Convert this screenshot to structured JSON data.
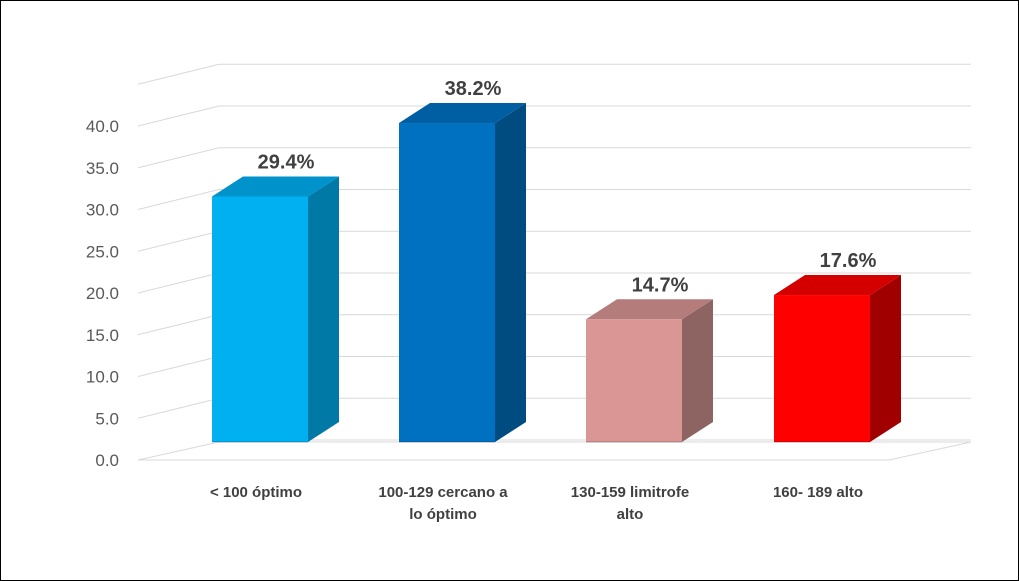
{
  "chart_data": {
    "type": "bar",
    "categories": [
      [
        "< 100 óptimo"
      ],
      [
        "100-129 cercano a",
        "lo óptimo"
      ],
      [
        "130-159 limitrofe",
        "alto"
      ],
      [
        "160- 189 alto"
      ]
    ],
    "values": [
      29.4,
      38.2,
      14.7,
      17.6
    ],
    "data_labels": [
      "29.4%",
      "38.2%",
      "14.7%",
      "17.6%"
    ],
    "y_ticks": [
      "0.0",
      "5.0",
      "10.0",
      "15.0",
      "20.0",
      "25.0",
      "30.0",
      "35.0",
      "40.0"
    ],
    "ylim": [
      0,
      40
    ],
    "style": "3d-column",
    "grid": true,
    "legend": "none",
    "colors": [
      {
        "front": "#00B0F0",
        "side": "#0079A6",
        "top": "#0092CA"
      },
      {
        "front": "#0070C0",
        "side": "#004B80",
        "top": "#005EA3"
      },
      {
        "front": "#D99694",
        "side": "#8E6463",
        "top": "#B47C7B"
      },
      {
        "front": "#FF0000",
        "side": "#A00000",
        "top": "#D40000"
      }
    ],
    "grid_color": "#D9D9D9"
  }
}
